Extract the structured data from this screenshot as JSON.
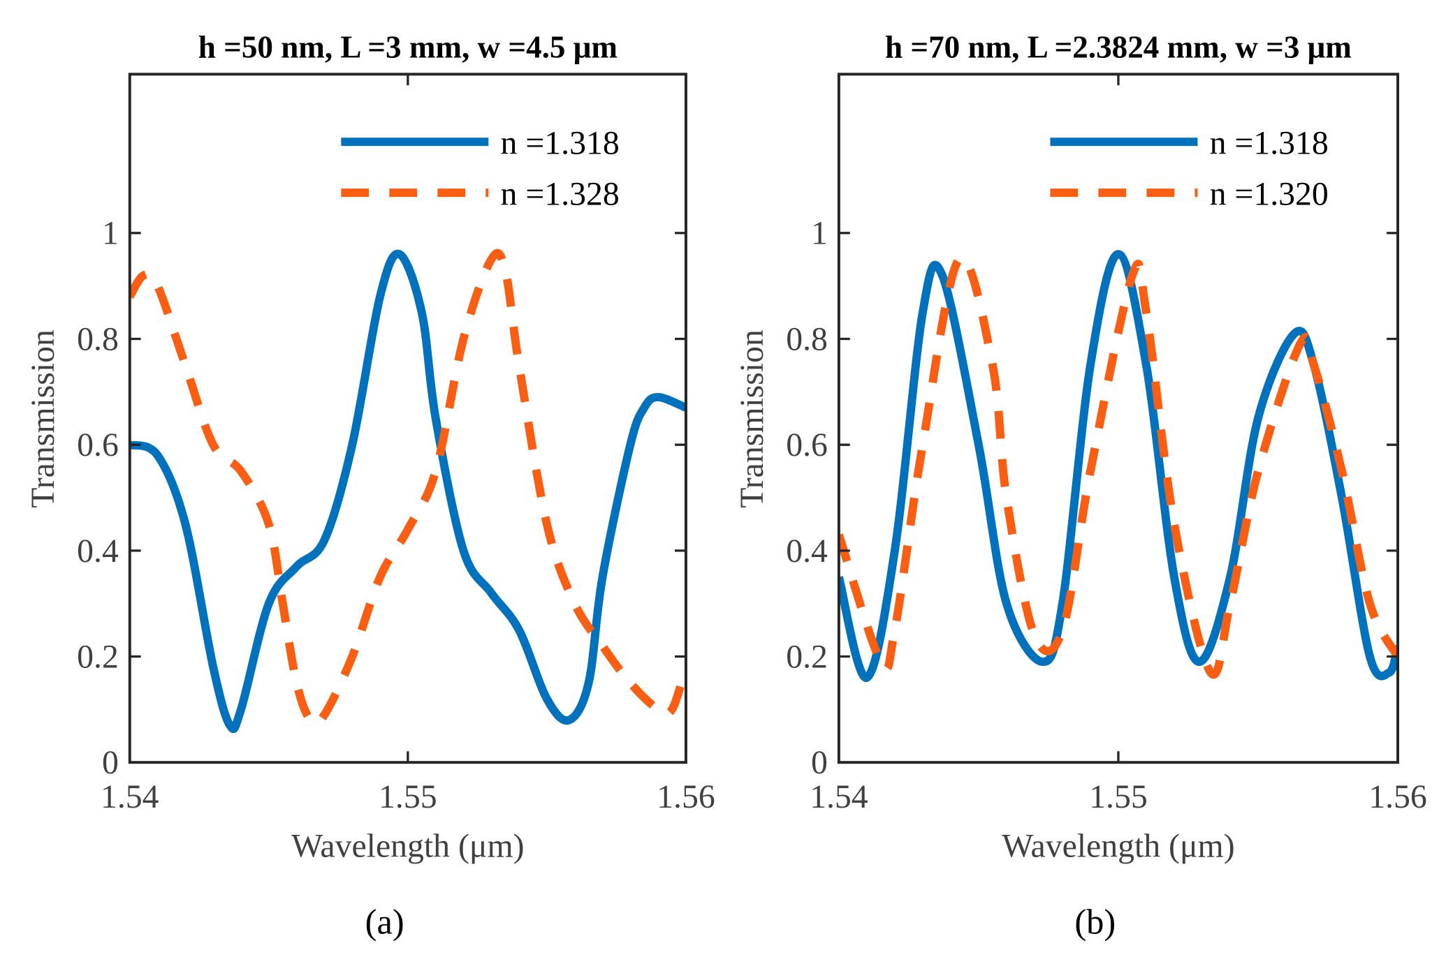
{
  "colors": {
    "blue": "#0072BD",
    "orange": "#F95E12"
  },
  "chart_data": [
    {
      "type": "line",
      "panel_label": "(a)",
      "title": "h =50 nm, L =3 mm, w =4.5 μm",
      "xlabel": "Wavelength (μm)",
      "ylabel": "Transmission",
      "xlim": [
        1.54,
        1.56
      ],
      "ylim": [
        0,
        1.3
      ],
      "xticks": [
        "1.54",
        "1.55",
        "1.56"
      ],
      "yticks": [
        "0",
        "0.2",
        "0.4",
        "0.6",
        "0.8",
        "1"
      ],
      "legend_position": "top-right",
      "series": [
        {
          "name": "n =1.318",
          "style": "solid",
          "color": "#0072BD",
          "x": [
            1.54,
            1.541,
            1.542,
            1.543,
            1.5436,
            1.544,
            1.545,
            1.546,
            1.547,
            1.548,
            1.549,
            1.5497,
            1.5505,
            1.551,
            1.552,
            1.553,
            1.554,
            1.555,
            1.5558,
            1.5565,
            1.557,
            1.558,
            1.5585,
            1.559,
            1.56
          ],
          "y": [
            0.6,
            0.58,
            0.45,
            0.18,
            0.07,
            0.1,
            0.3,
            0.37,
            0.42,
            0.6,
            0.88,
            0.96,
            0.85,
            0.65,
            0.4,
            0.32,
            0.25,
            0.12,
            0.08,
            0.15,
            0.35,
            0.6,
            0.67,
            0.69,
            0.67
          ]
        },
        {
          "name": "n =1.328",
          "style": "dashed",
          "color": "#F95E12",
          "x": [
            1.54,
            1.5405,
            1.541,
            1.542,
            1.543,
            1.544,
            1.545,
            1.5455,
            1.546,
            1.5465,
            1.547,
            1.548,
            1.549,
            1.55,
            1.551,
            1.552,
            1.553,
            1.5535,
            1.554,
            1.555,
            1.556,
            1.557,
            1.558,
            1.559,
            1.5595,
            1.56
          ],
          "y": [
            0.88,
            0.92,
            0.9,
            0.75,
            0.6,
            0.55,
            0.45,
            0.3,
            0.15,
            0.08,
            0.09,
            0.2,
            0.35,
            0.44,
            0.55,
            0.8,
            0.95,
            0.93,
            0.75,
            0.45,
            0.3,
            0.22,
            0.15,
            0.1,
            0.1,
            0.18
          ]
        }
      ]
    },
    {
      "type": "line",
      "panel_label": "(b)",
      "title": "h =70 nm, L =2.3824 mm, w =3 μm",
      "xlabel": "Wavelength (μm)",
      "ylabel": "Transmission",
      "xlim": [
        1.54,
        1.56
      ],
      "ylim": [
        0,
        1.3
      ],
      "xticks": [
        "1.54",
        "1.55",
        "1.56"
      ],
      "yticks": [
        "0",
        "0.2",
        "0.4",
        "0.6",
        "0.8",
        "1"
      ],
      "legend_position": "top-right",
      "series": [
        {
          "name": "n =1.318",
          "style": "solid",
          "color": "#0072BD",
          "x": [
            1.54,
            1.541,
            1.542,
            1.543,
            1.5437,
            1.545,
            1.546,
            1.5473,
            1.548,
            1.549,
            1.55,
            1.551,
            1.552,
            1.5529,
            1.554,
            1.555,
            1.5563,
            1.557,
            1.558,
            1.559,
            1.5597,
            1.56
          ],
          "y": [
            0.35,
            0.16,
            0.4,
            0.85,
            0.92,
            0.6,
            0.3,
            0.19,
            0.3,
            0.75,
            0.96,
            0.75,
            0.35,
            0.19,
            0.35,
            0.65,
            0.81,
            0.75,
            0.5,
            0.2,
            0.17,
            0.22
          ]
        },
        {
          "name": "n =1.320",
          "style": "dashed",
          "color": "#F95E12",
          "x": [
            1.54,
            1.5415,
            1.542,
            1.543,
            1.5443,
            1.5455,
            1.546,
            1.547,
            1.548,
            1.549,
            1.5505,
            1.551,
            1.552,
            1.5533,
            1.554,
            1.555,
            1.5565,
            1.557,
            1.558,
            1.559,
            1.56
          ],
          "y": [
            0.43,
            0.19,
            0.25,
            0.6,
            0.95,
            0.75,
            0.5,
            0.24,
            0.25,
            0.55,
            0.92,
            0.85,
            0.45,
            0.17,
            0.3,
            0.55,
            0.79,
            0.75,
            0.55,
            0.3,
            0.2
          ]
        }
      ]
    }
  ]
}
